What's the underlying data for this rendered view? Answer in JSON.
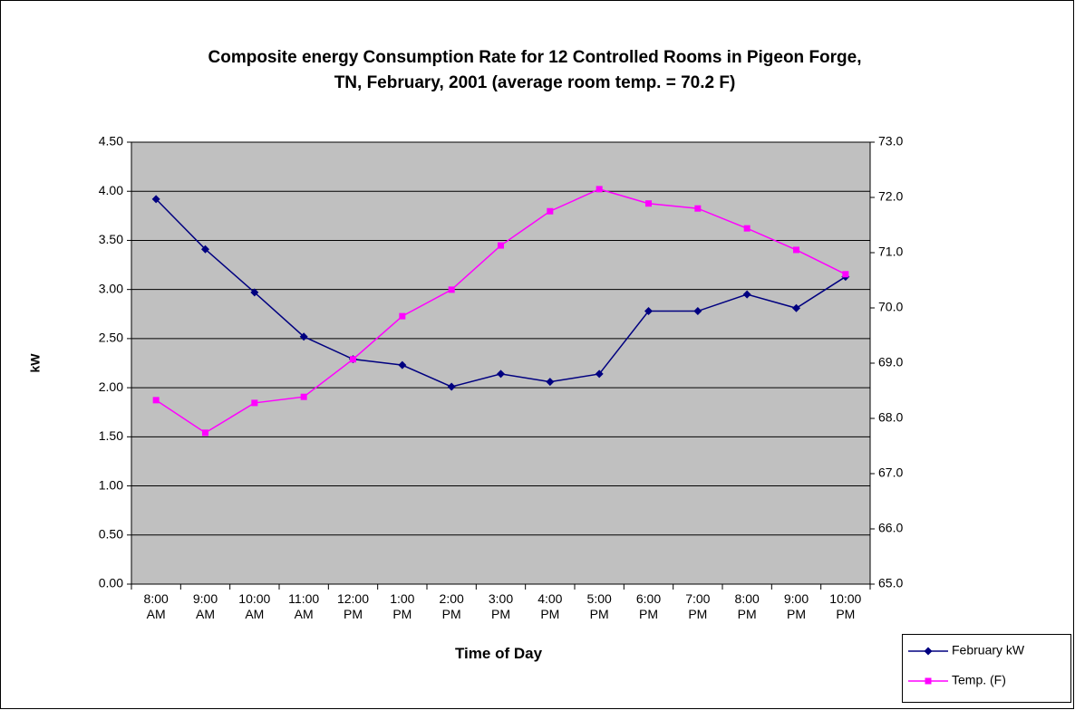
{
  "chart_data": {
    "type": "line",
    "title": "Composite energy Consumption Rate for 12 Controlled Rooms in Pigeon Forge, TN, February, 2001 (average room temp. = 70.2 F)",
    "x_label": "Time of Day",
    "y_label": "kW",
    "categories": [
      "8:00 AM",
      "9:00 AM",
      "10:00 AM",
      "11:00 AM",
      "12:00 PM",
      "1:00 PM",
      "2:00 PM",
      "3:00 PM",
      "4:00 PM",
      "5:00 PM",
      "6:00 PM",
      "7:00 PM",
      "8:00 PM",
      "9:00 PM",
      "10:00 PM"
    ],
    "series": [
      {
        "name": "February kW",
        "color": "#000080",
        "marker": "diamond",
        "values": [
          3.92,
          3.41,
          2.97,
          2.52,
          2.29,
          2.23,
          2.01,
          2.14,
          2.06,
          2.14,
          2.78,
          2.78,
          2.95,
          2.81,
          3.13
        ]
      },
      {
        "name": "Temp. (F)",
        "color": "#ff00ff",
        "marker": "square",
        "axis": "y2",
        "values": [
          68.33,
          67.74,
          68.28,
          68.39,
          69.07,
          69.85,
          70.33,
          71.13,
          71.75,
          72.15,
          71.89,
          71.8,
          71.44,
          71.05,
          70.61
        ]
      }
    ],
    "ylim": [
      0,
      4.5
    ],
    "yticks": [
      {
        "value": 0,
        "label": "0.00"
      },
      {
        "value": 0.5,
        "label": "0.50"
      },
      {
        "value": 1,
        "label": "1.00"
      },
      {
        "value": 1.5,
        "label": "1.50"
      },
      {
        "value": 2,
        "label": "2.00"
      },
      {
        "value": 2.5,
        "label": "2.50"
      },
      {
        "value": 3,
        "label": "3.00"
      },
      {
        "value": 3.5,
        "label": "3.50"
      },
      {
        "value": 4,
        "label": "4.00"
      },
      {
        "value": 4.5,
        "label": "4.50"
      }
    ],
    "y2lim": [
      65,
      73
    ],
    "y2ticks": [
      {
        "value": 65,
        "label": "65.0"
      },
      {
        "value": 66,
        "label": "66.0"
      },
      {
        "value": 67,
        "label": "67.0"
      },
      {
        "value": 68,
        "label": "68.0"
      },
      {
        "value": 69,
        "label": "69.0"
      },
      {
        "value": 70,
        "label": "70.0"
      },
      {
        "value": 71,
        "label": "71.0"
      },
      {
        "value": 72,
        "label": "72.0"
      },
      {
        "value": 73,
        "label": "73.0"
      }
    ],
    "grid": true,
    "plot_background": "#c0c0c0"
  }
}
